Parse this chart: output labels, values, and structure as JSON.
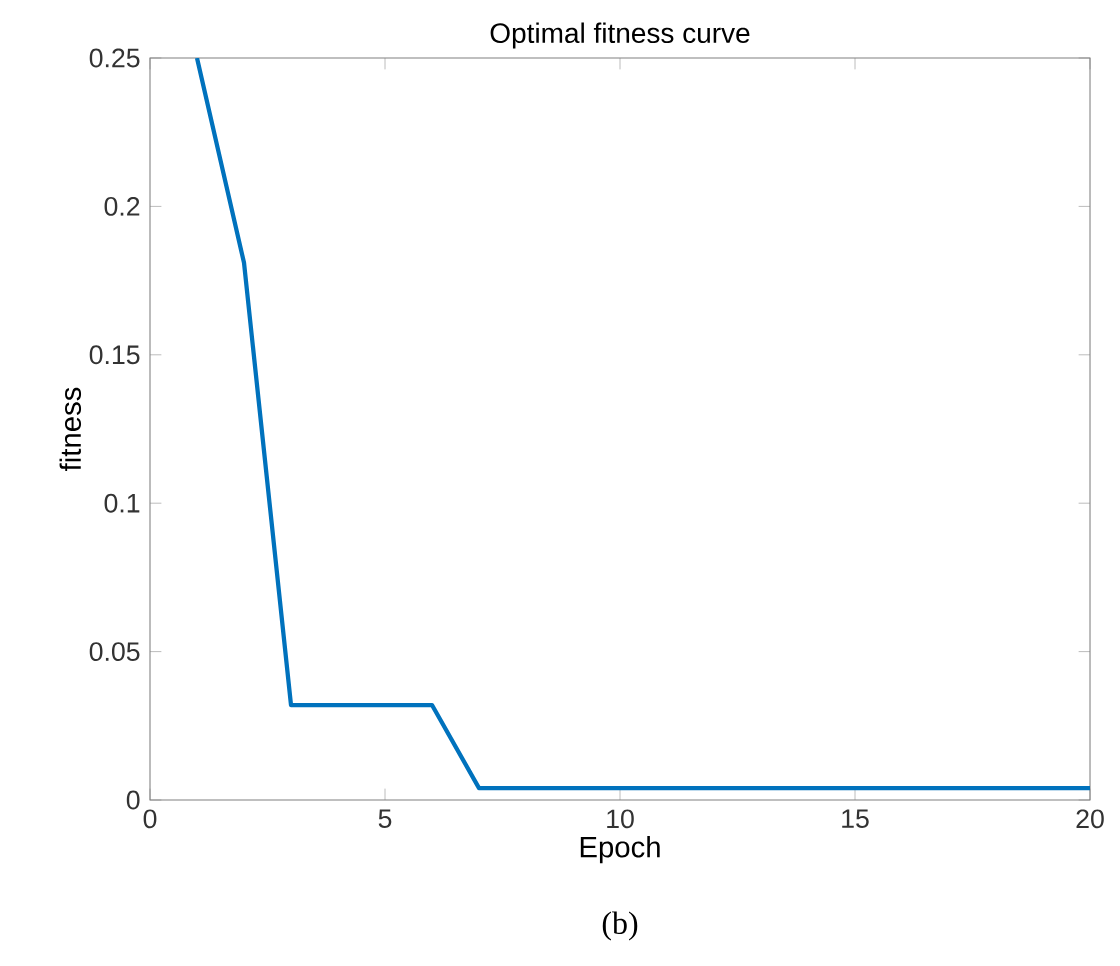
{
  "chart_data": {
    "type": "line",
    "title": "Optimal fitness curve",
    "xlabel": "Epoch",
    "ylabel": "fitness",
    "x": [
      1,
      2,
      3,
      6,
      7,
      20
    ],
    "series": [
      {
        "color": "#0072bd",
        "values": [
          0.25,
          0.181,
          0.032,
          0.032,
          0.004,
          0.004
        ]
      }
    ],
    "xlim": [
      0,
      20
    ],
    "ylim": [
      0,
      0.25
    ],
    "xticks": [
      0,
      5,
      10,
      15,
      20
    ],
    "yticks": [
      0,
      0.05,
      0.1,
      0.15,
      0.2,
      0.25
    ],
    "grid": false,
    "marker": "none",
    "line_style": "solid",
    "annotations": [
      "(b)"
    ]
  }
}
